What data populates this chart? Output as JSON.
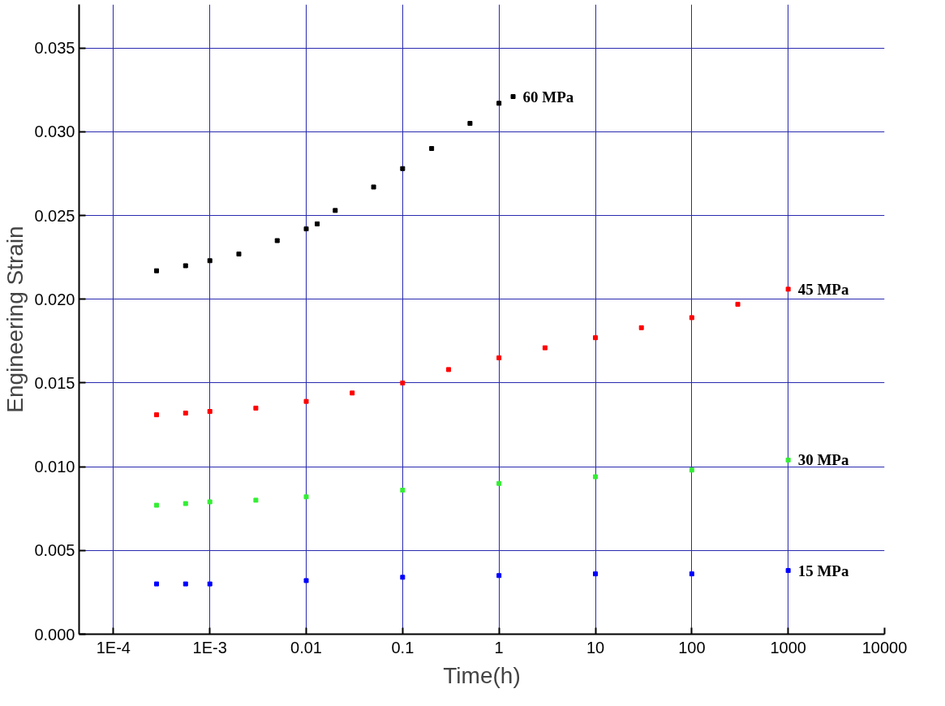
{
  "chart_data": {
    "type": "scatter",
    "xlabel": "Time(h)",
    "ylabel": "Engineering Strain",
    "log": "x",
    "marker": "square",
    "grid": true,
    "legend": false,
    "xlim": [
      4.4e-05,
      10000
    ],
    "ylim": [
      0,
      0.0376
    ],
    "xticks": [
      {
        "value": 0.0001,
        "label": "1E-4"
      },
      {
        "value": 0.001,
        "label": "1E-3"
      },
      0.01,
      0.1,
      1,
      10,
      100,
      1000,
      10000
    ],
    "yticks": [
      {
        "value": 0,
        "label": "0.000"
      },
      {
        "value": 0.005,
        "label": "0.005"
      },
      {
        "value": 0.01,
        "label": "0.010"
      },
      {
        "value": 0.015,
        "label": "0.015"
      },
      {
        "value": 0.02,
        "label": "0.020"
      },
      {
        "value": 0.025,
        "label": "0.025"
      },
      {
        "value": 0.03,
        "label": "0.030"
      },
      {
        "value": 0.035,
        "label": "0.035"
      }
    ],
    "series": [
      {
        "name": "60 MPa",
        "color": "#000000",
        "x": [
          0.00028,
          0.00056,
          0.001,
          0.002,
          0.005,
          0.01,
          0.013,
          0.02,
          0.05,
          0.1,
          0.2,
          0.5,
          1,
          1.4
        ],
        "values": [
          0.0217,
          0.022,
          0.0223,
          0.0227,
          0.0235,
          0.0242,
          0.0245,
          0.0253,
          0.0267,
          0.0278,
          0.029,
          0.0305,
          0.0317,
          0.0321
        ]
      },
      {
        "name": "45 MPa",
        "color": "#ff0000",
        "x": [
          0.00028,
          0.00056,
          0.001,
          0.003,
          0.01,
          0.03,
          0.1,
          0.3,
          1,
          3,
          10,
          30,
          100,
          300,
          1000
        ],
        "values": [
          0.0131,
          0.0132,
          0.0133,
          0.0135,
          0.0139,
          0.0144,
          0.015,
          0.0158,
          0.0165,
          0.0171,
          0.0177,
          0.0183,
          0.0189,
          0.0197,
          0.0206
        ]
      },
      {
        "name": "30 MPa",
        "color": "#33ee33",
        "x": [
          0.00028,
          0.00056,
          0.001,
          0.003,
          0.01,
          0.1,
          1,
          10,
          100,
          1000
        ],
        "values": [
          0.0077,
          0.0078,
          0.0079,
          0.008,
          0.0082,
          0.0086,
          0.009,
          0.0094,
          0.0098,
          0.0104
        ]
      },
      {
        "name": "15 MPa",
        "color": "#0000ff",
        "x": [
          0.00028,
          0.00056,
          0.001,
          0.01,
          0.1,
          1,
          10,
          100,
          1000
        ],
        "values": [
          0.003,
          0.003,
          0.003,
          0.0032,
          0.0034,
          0.0035,
          0.0036,
          0.0036,
          0.0038
        ]
      }
    ]
  }
}
